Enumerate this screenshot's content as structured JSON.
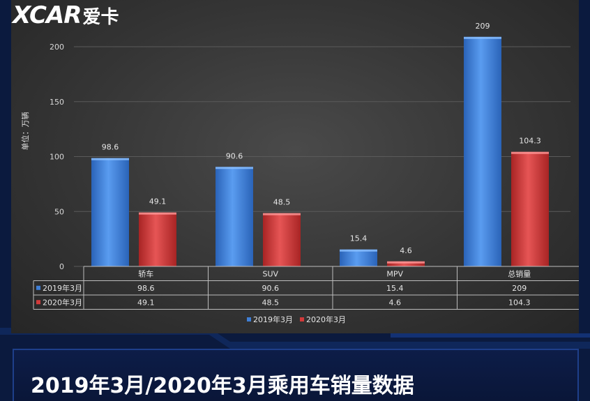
{
  "logo": {
    "brand": "XCAR",
    "chinese": "爱卡"
  },
  "caption": "2019年3月/2020年3月乘用车销量数据",
  "colors": {
    "series_2019": "#3f7fd6",
    "series_2020": "#d23a3a",
    "grid": "#5a5a5a",
    "table_border": "#bdbdbd"
  },
  "chart_data": {
    "type": "bar",
    "categories": [
      "轿车",
      "SUV",
      "MPV",
      "总销量"
    ],
    "series": [
      {
        "name": "2019年3月",
        "values": [
          98.6,
          90.6,
          15.4,
          209
        ],
        "labels": [
          "98.6",
          "90.6",
          "15.4",
          "209"
        ]
      },
      {
        "name": "2020年3月",
        "values": [
          49.1,
          48.5,
          4.6,
          104.3
        ],
        "labels": [
          "49.1",
          "48.5",
          "4.6",
          "104.3"
        ]
      }
    ],
    "title": "",
    "xlabel": "",
    "ylabel": "单位：万辆",
    "ylim": [
      0,
      210
    ],
    "yticks": [
      0,
      50,
      100,
      150,
      200
    ],
    "grid": true,
    "legend_position": "bottom",
    "data_table": true
  }
}
